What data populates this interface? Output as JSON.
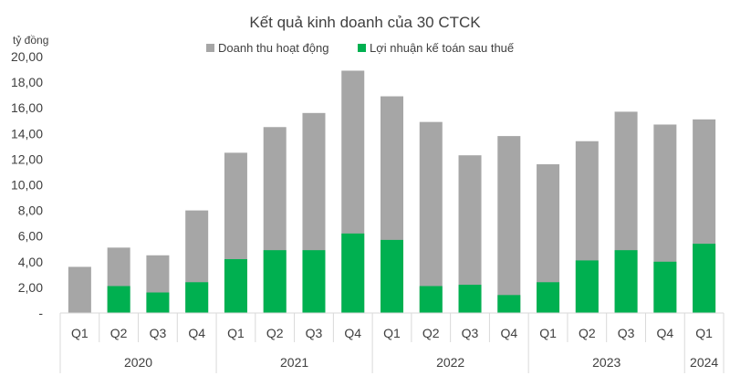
{
  "chart_data": {
    "type": "bar",
    "stacked": false,
    "overlap": true,
    "title": "Kết quả kinh doanh của 30 CTCK",
    "ylabel": "tỷ đồng",
    "xlabel": "",
    "ylim": [
      0,
      20
    ],
    "yticks": [
      "-",
      "2,00",
      "4,00",
      "6,00",
      "8,00",
      "10,00",
      "12,00",
      "14,00",
      "16,00",
      "18,00",
      "20,00"
    ],
    "legend_position": "top",
    "categories": [
      "Q1",
      "Q2",
      "Q3",
      "Q4",
      "Q1",
      "Q2",
      "Q3",
      "Q4",
      "Q1",
      "Q2",
      "Q3",
      "Q4",
      "Q1",
      "Q2",
      "Q3",
      "Q4",
      "Q1"
    ],
    "groups": [
      {
        "label": "2020",
        "count": 4
      },
      {
        "label": "2021",
        "count": 4
      },
      {
        "label": "2022",
        "count": 4
      },
      {
        "label": "2023",
        "count": 4
      },
      {
        "label": "2024",
        "count": 1
      }
    ],
    "series": [
      {
        "name": "Doanh thu hoạt động",
        "color": "#a6a6a6",
        "values": [
          3.6,
          5.1,
          4.5,
          8.0,
          12.5,
          14.5,
          15.6,
          18.9,
          16.9,
          14.9,
          12.3,
          13.8,
          11.6,
          13.4,
          15.7,
          14.7,
          15.1
        ]
      },
      {
        "name": "Lợi nhuận kế toán sau thuế",
        "color": "#00b050",
        "values": [
          0,
          2.1,
          1.6,
          2.4,
          4.2,
          4.9,
          4.9,
          6.2,
          5.7,
          2.1,
          2.2,
          1.4,
          2.4,
          4.1,
          4.9,
          4.0,
          5.4
        ]
      }
    ],
    "grid": false
  },
  "colors": {
    "text": "#404040",
    "axis_line": "#d9d9d9"
  }
}
